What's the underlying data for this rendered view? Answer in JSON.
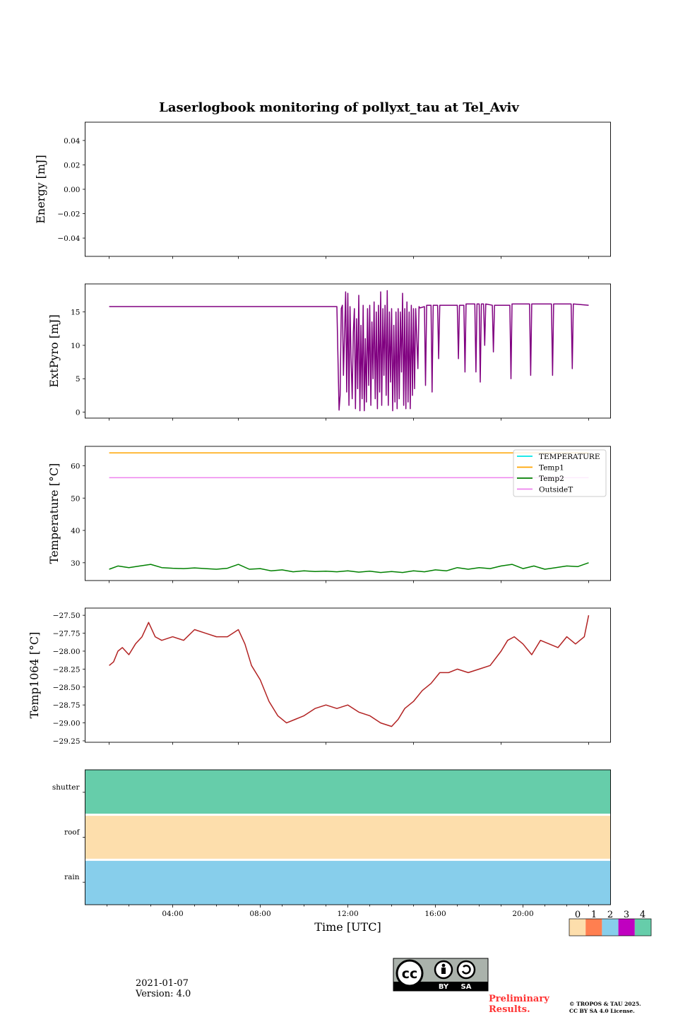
{
  "title": "Laserlogbook monitoring of pollyxt_tau at Tel_Aviv",
  "chart_data": [
    {
      "type": "line",
      "ylabel": "Energy [mJ]",
      "ylim": [
        -0.055,
        0.055
      ],
      "yticks": [
        0.04,
        0.02,
        0.0,
        -0.02,
        -0.04
      ],
      "ytick_labels": [
        "0.04",
        "0.02",
        "0.00",
        "−0.02",
        "−0.04"
      ],
      "series": []
    },
    {
      "type": "line",
      "ylabel": "ExtPyro [mJ]",
      "x_unit": "hours UTC",
      "ylim": [
        -0.9,
        19.2
      ],
      "yticks": [
        0,
        5,
        10,
        15
      ],
      "ytick_labels": [
        "0",
        "5",
        "10",
        "15"
      ],
      "series": [
        {
          "color": "#800080",
          "x": [
            1.1,
            11.5,
            11.6,
            11.65,
            11.7,
            11.75,
            11.8,
            11.9,
            11.95,
            12.0,
            12.05,
            12.1,
            12.15,
            12.2,
            12.25,
            12.3,
            12.35,
            12.4,
            12.45,
            12.5,
            12.55,
            12.6,
            12.65,
            12.7,
            12.75,
            12.8,
            12.85,
            12.9,
            12.95,
            13.0,
            13.05,
            13.1,
            13.15,
            13.2,
            13.25,
            13.3,
            13.35,
            13.4,
            13.45,
            13.5,
            13.55,
            13.6,
            13.65,
            13.7,
            13.75,
            13.8,
            13.85,
            13.9,
            13.95,
            14.0,
            14.05,
            14.1,
            14.15,
            14.2,
            14.25,
            14.3,
            14.35,
            14.4,
            14.45,
            14.5,
            14.55,
            14.6,
            14.65,
            14.7,
            14.75,
            14.8,
            14.85,
            14.9,
            14.95,
            15.0,
            15.05,
            15.1,
            15.2,
            15.25,
            15.3,
            15.5,
            15.55,
            15.6,
            15.8,
            15.85,
            15.9,
            16.1,
            16.15,
            16.2,
            17.0,
            17.05,
            17.1,
            17.3,
            17.35,
            17.4,
            17.8,
            17.85,
            17.9,
            18.0,
            18.05,
            18.1,
            18.2,
            18.25,
            18.3,
            18.6,
            18.65,
            18.7,
            19.4,
            19.45,
            19.5,
            20.3,
            20.35,
            20.4,
            21.3,
            21.35,
            21.4,
            22.2,
            22.25,
            22.3,
            23.0
          ],
          "y": [
            15.8,
            15.8,
            0.3,
            2.5,
            15.5,
            16.0,
            5.5,
            18.0,
            3.0,
            17.8,
            1.0,
            15.8,
            8.0,
            2.0,
            12.0,
            15.5,
            0.5,
            14.0,
            3.5,
            17.5,
            0.2,
            13.0,
            2.0,
            16.0,
            0.2,
            11.0,
            1.5,
            15.5,
            4.0,
            16.0,
            1.0,
            13.5,
            5.0,
            16.5,
            2.0,
            15.0,
            0.5,
            16.0,
            3.0,
            18.0,
            1.0,
            15.5,
            5.5,
            16.0,
            2.5,
            18.2,
            1.0,
            15.0,
            4.5,
            15.5,
            0.2,
            13.0,
            1.5,
            15.0,
            0.5,
            15.5,
            2.0,
            15.0,
            6.0,
            17.8,
            1.0,
            15.5,
            0.5,
            16.5,
            1.5,
            15.0,
            0.5,
            16.0,
            2.5,
            15.5,
            3.5,
            15.5,
            6.5,
            15.8,
            15.6,
            15.8,
            4.0,
            16.0,
            16.0,
            3.0,
            16.0,
            16.0,
            8.0,
            16.0,
            16.0,
            8.0,
            16.0,
            16.0,
            6.0,
            16.2,
            16.2,
            6.0,
            16.2,
            16.2,
            4.5,
            16.2,
            16.2,
            10.0,
            16.2,
            16.0,
            9.0,
            16.0,
            16.0,
            5.0,
            16.2,
            16.2,
            5.5,
            16.2,
            16.2,
            5.5,
            16.2,
            16.2,
            6.5,
            16.2,
            16.0
          ]
        }
      ]
    },
    {
      "type": "line",
      "ylabel": "Temperature [°C]",
      "x_unit": "hours UTC",
      "ylim": [
        24.5,
        66
      ],
      "yticks": [
        30,
        40,
        50,
        60
      ],
      "ytick_labels": [
        "30",
        "40",
        "50",
        "60"
      ],
      "legend": "top-right",
      "series": [
        {
          "name": "TEMPERATURE",
          "color": "#00e5e5",
          "x": [],
          "y": []
        },
        {
          "name": "Temp1",
          "color": "#ffa500",
          "x": [
            1.1,
            23.0
          ],
          "y": [
            64.0,
            64.0
          ]
        },
        {
          "name": "Temp2",
          "color": "#008000",
          "x": [
            1.1,
            1.5,
            2.0,
            2.5,
            3.0,
            3.5,
            4.0,
            4.5,
            5.0,
            5.5,
            6.0,
            6.5,
            7.0,
            7.5,
            8.0,
            8.5,
            9.0,
            9.5,
            10.0,
            10.5,
            11.0,
            11.5,
            12.0,
            12.5,
            13.0,
            13.5,
            14.0,
            14.5,
            15.0,
            15.5,
            16.0,
            16.5,
            17.0,
            17.5,
            18.0,
            18.5,
            19.0,
            19.5,
            20.0,
            20.5,
            21.0,
            21.5,
            22.0,
            22.5,
            23.0
          ],
          "y": [
            28.0,
            29.0,
            28.5,
            29.0,
            29.5,
            28.5,
            28.3,
            28.2,
            28.4,
            28.2,
            28.0,
            28.3,
            29.5,
            28.0,
            28.2,
            27.5,
            27.8,
            27.2,
            27.5,
            27.3,
            27.4,
            27.2,
            27.5,
            27.1,
            27.4,
            27.0,
            27.3,
            27.0,
            27.5,
            27.2,
            27.8,
            27.5,
            28.5,
            28.0,
            28.5,
            28.2,
            29.0,
            29.5,
            28.2,
            29.0,
            28.0,
            28.5,
            29.0,
            28.8,
            30.0
          ]
        },
        {
          "name": "OutsideT",
          "color": "#ee82ee",
          "x": [
            1.1,
            23.0
          ],
          "y": [
            56.3,
            56.3
          ]
        }
      ]
    },
    {
      "type": "line",
      "ylabel": "Temp1064 [°C]",
      "x_unit": "hours UTC",
      "ylim": [
        -29.27,
        -27.4
      ],
      "yticks": [
        -27.5,
        -27.75,
        -28.0,
        -28.25,
        -28.5,
        -28.75,
        -29.0,
        -29.25
      ],
      "ytick_labels": [
        "−27.50",
        "−27.75",
        "−28.00",
        "−28.25",
        "−28.50",
        "−28.75",
        "−29.00",
        "−29.25"
      ],
      "series": [
        {
          "color": "#b22222",
          "x": [
            1.1,
            1.3,
            1.5,
            1.7,
            2.0,
            2.3,
            2.6,
            2.9,
            3.2,
            3.5,
            4.0,
            4.5,
            5.0,
            5.5,
            6.0,
            6.5,
            7.0,
            7.3,
            7.6,
            8.0,
            8.4,
            8.8,
            9.2,
            9.6,
            10.0,
            10.5,
            11.0,
            11.5,
            12.0,
            12.5,
            13.0,
            13.5,
            14.0,
            14.3,
            14.6,
            15.0,
            15.4,
            15.8,
            16.2,
            16.6,
            17.0,
            17.5,
            18.0,
            18.5,
            19.0,
            19.3,
            19.6,
            20.0,
            20.4,
            20.8,
            21.2,
            21.6,
            22.0,
            22.4,
            22.8,
            23.0
          ],
          "y": [
            -28.2,
            -28.15,
            -28.0,
            -27.95,
            -28.05,
            -27.9,
            -27.8,
            -27.6,
            -27.8,
            -27.85,
            -27.8,
            -27.85,
            -27.7,
            -27.75,
            -27.8,
            -27.8,
            -27.7,
            -27.9,
            -28.2,
            -28.4,
            -28.7,
            -28.9,
            -29.0,
            -28.95,
            -28.9,
            -28.8,
            -28.75,
            -28.8,
            -28.75,
            -28.85,
            -28.9,
            -29.0,
            -29.05,
            -28.95,
            -28.8,
            -28.7,
            -28.55,
            -28.45,
            -28.3,
            -28.3,
            -28.25,
            -28.3,
            -28.25,
            -28.2,
            -28.0,
            -27.85,
            -27.8,
            -27.9,
            -28.05,
            -27.85,
            -27.9,
            -27.95,
            -27.8,
            -27.9,
            -27.8,
            -27.5
          ]
        }
      ]
    },
    {
      "type": "heatmap",
      "rows": [
        "shutter",
        "roof",
        "rain"
      ],
      "row_states": [
        4,
        0,
        2
      ],
      "xlim": [
        0,
        24
      ],
      "xticks": [
        4,
        8,
        12,
        16,
        20
      ],
      "xtick_labels": [
        "04:00",
        "08:00",
        "12:00",
        "16:00",
        "20:00"
      ],
      "xlabel": "Time [UTC]",
      "colorbar": {
        "labels": [
          "0",
          "1",
          "2",
          "3",
          "4"
        ],
        "colors": [
          "#fddeac",
          "#ff7f50",
          "#87ceeb",
          "#c000c0",
          "#66cdaa"
        ]
      }
    }
  ],
  "footer": {
    "date": "2021-01-07",
    "version": "Version: 4.0",
    "preliminary_line1": "Preliminary",
    "preliminary_line2": "Results.",
    "copyright_line1": "© TROPOS & TAU 2025.",
    "copyright_line2": "CC BY SA 4.0 License.",
    "cc_badge": "cc",
    "by": "BY",
    "sa": "SA",
    "preliminary_color": "#ff3333"
  }
}
